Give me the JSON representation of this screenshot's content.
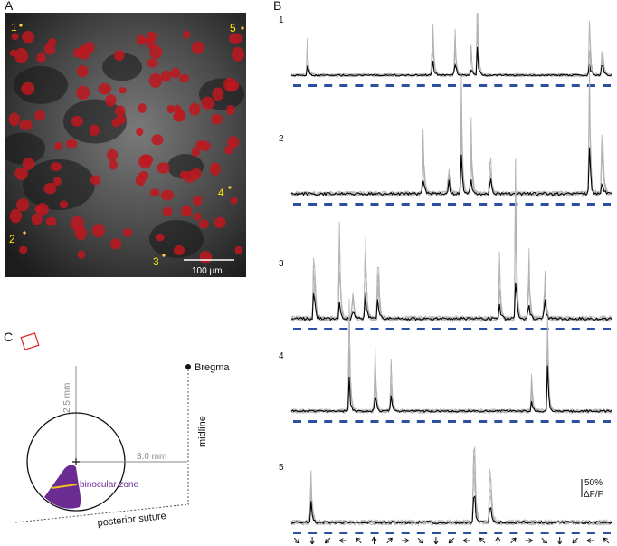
{
  "panels": {
    "a": {
      "letter": "A"
    },
    "b": {
      "letter": "B"
    },
    "c": {
      "letter": "C"
    }
  },
  "microscopy": {
    "scale_bar_label": "100 µm",
    "cell_labels": [
      "1",
      "2",
      "3",
      "4",
      "5"
    ],
    "colors": {
      "roi": "#c0181f",
      "label": "#ffe600",
      "background": "#1a1a1a"
    }
  },
  "traces": {
    "rows": [
      {
        "label": "1",
        "peaks": [
          0.05,
          0.44,
          0.51,
          0.56,
          0.58,
          0.93,
          0.97
        ]
      },
      {
        "label": "2",
        "peaks": [
          0.41,
          0.49,
          0.53,
          0.56,
          0.62,
          0.93,
          0.97
        ]
      },
      {
        "label": "3",
        "peaks": [
          0.07,
          0.15,
          0.19,
          0.23,
          0.27,
          0.65,
          0.7,
          0.74,
          0.79
        ]
      },
      {
        "label": "4",
        "peaks": [
          0.18,
          0.26,
          0.31,
          0.75,
          0.8
        ]
      },
      {
        "label": "5",
        "peaks": [
          0.06,
          0.57,
          0.62
        ]
      }
    ],
    "scale_value": "50%",
    "scale_unit": "ΔF/F",
    "colors": {
      "individual": "#b3b3b3",
      "mean": "#000000",
      "stimulus": "#2d4fa1"
    }
  },
  "schematic": {
    "bregma_label": "Bregma",
    "midline_label": "midline",
    "suture_label": "posterior suture",
    "binocular_label": "binocular zone",
    "dist_vertical": "2.5 mm",
    "dist_horizontal": "3.0 mm",
    "colors": {
      "binocular": "#6a2c91",
      "binocular_label": "#6a2c91",
      "boundary": "#f0c020",
      "window": "#e02020"
    }
  }
}
